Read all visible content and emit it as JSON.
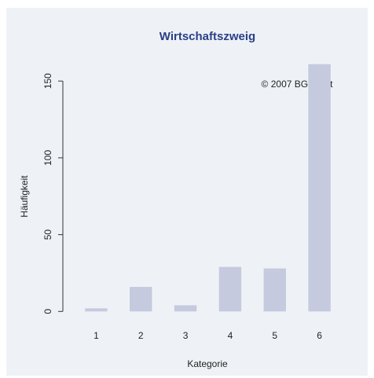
{
  "chart_data": {
    "type": "bar",
    "title": "Wirtschaftszweig",
    "annotation": "© 2007 BGKI.net",
    "x_label": "Kategorie",
    "y_label": "Häufigkeit",
    "categories": [
      "1",
      "2",
      "3",
      "4",
      "5",
      "6"
    ],
    "values": [
      2,
      16,
      4,
      29,
      28,
      161
    ],
    "color": "#c5cade",
    "ylim": [
      -6.5,
      168.5
    ],
    "yticks": [
      0,
      50,
      100,
      150
    ],
    "grid": false
  }
}
